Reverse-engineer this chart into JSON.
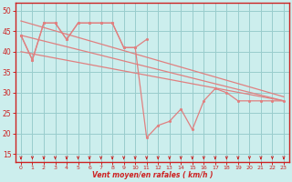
{
  "background_color": "#cceeed",
  "line_color": "#e08080",
  "grid_color": "#99cccc",
  "axis_color": "#cc2222",
  "xlabel": "Vent moyen/en rafales ( km/h )",
  "ylabel_ticks": [
    15,
    20,
    25,
    30,
    35,
    40,
    45,
    50
  ],
  "xlim": [
    -0.5,
    23.5
  ],
  "ylim": [
    13,
    52
  ],
  "jagged_x": [
    0,
    1,
    2,
    3,
    4,
    5,
    6,
    7,
    8,
    9,
    10,
    11,
    12,
    13,
    14,
    15,
    16,
    17,
    18,
    19,
    20,
    21,
    22,
    23
  ],
  "jagged_y": [
    44,
    38,
    47,
    47,
    43,
    47,
    47,
    47,
    47,
    41,
    41,
    19,
    22,
    23,
    26,
    21,
    28,
    31,
    30,
    28,
    28,
    28,
    28,
    28
  ],
  "upper_x": [
    0,
    1,
    2,
    3,
    4,
    5,
    6,
    7,
    8,
    9,
    10,
    11
  ],
  "upper_y": [
    44,
    38,
    47,
    47,
    43,
    47,
    47,
    47,
    47,
    41,
    41,
    43
  ],
  "trend1_x": [
    0,
    23
  ],
  "trend1_y": [
    44,
    28
  ],
  "trend2_x": [
    0,
    23
  ],
  "trend2_y": [
    47.5,
    29
  ],
  "trend3_x": [
    0,
    23
  ],
  "trend3_y": [
    40,
    28
  ]
}
